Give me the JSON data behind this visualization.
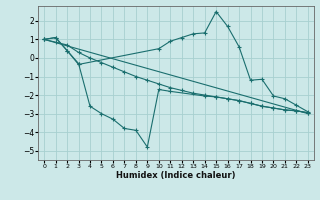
{
  "xlabel": "Humidex (Indice chaleur)",
  "bg_color": "#cce8e8",
  "grid_color": "#a8d0d0",
  "line_color": "#1a6e6e",
  "xlim": [
    -0.5,
    23.5
  ],
  "ylim": [
    -5.5,
    2.8
  ],
  "xticks": [
    0,
    1,
    2,
    3,
    4,
    5,
    6,
    7,
    8,
    9,
    10,
    11,
    12,
    13,
    14,
    15,
    16,
    17,
    18,
    19,
    20,
    21,
    22,
    23
  ],
  "yticks": [
    -5,
    -4,
    -3,
    -2,
    -1,
    0,
    1,
    2
  ],
  "series": [
    {
      "x": [
        0,
        1,
        2,
        3,
        4,
        5,
        6,
        7,
        8,
        9,
        10,
        11,
        14,
        15,
        16,
        17,
        18,
        19,
        20,
        21,
        22,
        23
      ],
      "y": [
        1.0,
        1.1,
        0.4,
        -0.3,
        -2.6,
        -3.0,
        -3.3,
        -3.8,
        -3.9,
        -4.8,
        -1.7,
        -1.8,
        -2.05,
        -2.1,
        -2.2,
        -2.3,
        -2.45,
        -2.6,
        -2.7,
        -2.8,
        -2.85,
        -2.95
      ],
      "markers": true
    },
    {
      "x": [
        0,
        1,
        2,
        3,
        10,
        11,
        12,
        13,
        14,
        15,
        16,
        17,
        18,
        19,
        20,
        21,
        22,
        23
      ],
      "y": [
        1.0,
        1.1,
        0.4,
        -0.35,
        0.5,
        0.9,
        1.1,
        1.3,
        1.35,
        2.5,
        1.7,
        0.6,
        -1.2,
        -1.15,
        -2.05,
        -2.2,
        -2.55,
        -2.9
      ],
      "markers": true
    },
    {
      "x": [
        0,
        1,
        2,
        3,
        4,
        5,
        6,
        7,
        8,
        9,
        10,
        11,
        12,
        13,
        14,
        15,
        16,
        17,
        18,
        19,
        20,
        21,
        22,
        23
      ],
      "y": [
        1.0,
        0.85,
        0.7,
        0.3,
        0.0,
        -0.25,
        -0.5,
        -0.75,
        -1.0,
        -1.2,
        -1.4,
        -1.6,
        -1.75,
        -1.9,
        -2.0,
        -2.1,
        -2.2,
        -2.3,
        -2.45,
        -2.6,
        -2.7,
        -2.8,
        -2.85,
        -2.95
      ],
      "markers": true
    },
    {
      "x": [
        0,
        23
      ],
      "y": [
        1.0,
        -3.0
      ],
      "markers": false
    }
  ]
}
